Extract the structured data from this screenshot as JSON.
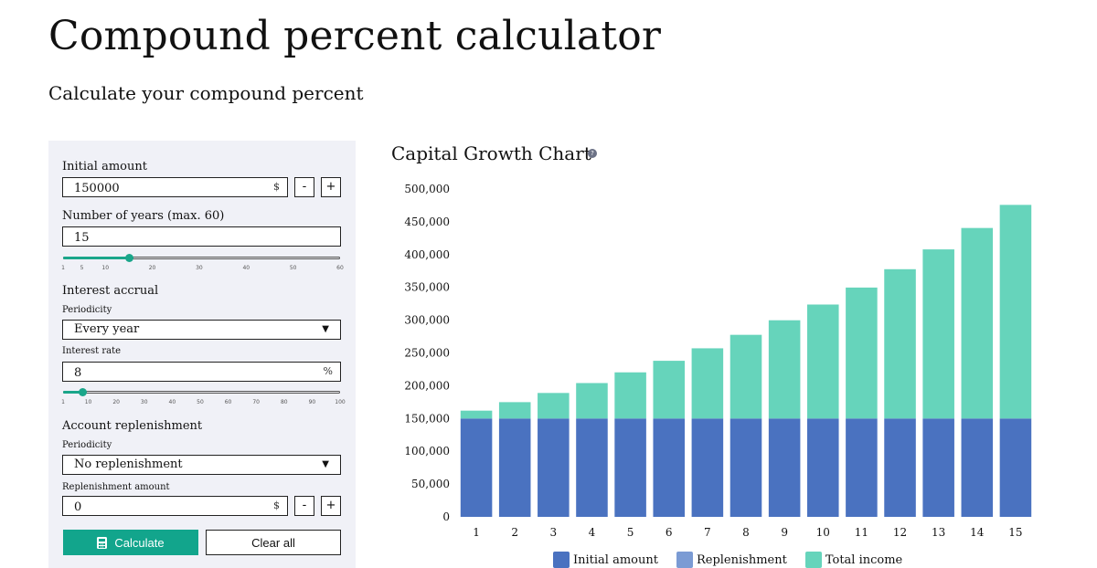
{
  "page": {
    "title": "Compound percent calculator",
    "subtitle": "Calculate your compound percent"
  },
  "form": {
    "initial_amount": {
      "label": "Initial amount",
      "value": "150000",
      "unit": "$",
      "minus": "-",
      "plus": "+"
    },
    "years": {
      "label": "Number of years (max. 60)",
      "value": "15",
      "slider": {
        "min": 1,
        "max": 60,
        "value": 15,
        "ticks": [
          "1",
          "5",
          "10",
          "20",
          "30",
          "40",
          "50",
          "60"
        ]
      }
    },
    "interest": {
      "heading": "Interest accrual",
      "periodicity_label": "Periodicity",
      "periodicity_value": "Every year",
      "rate_label": "Interest rate",
      "rate_value": "8",
      "rate_unit": "%",
      "slider": {
        "min": 1,
        "max": 100,
        "value": 8,
        "ticks": [
          "1",
          "10",
          "20",
          "30",
          "40",
          "50",
          "60",
          "70",
          "80",
          "90",
          "100"
        ]
      }
    },
    "replenishment": {
      "heading": "Account replenishment",
      "periodicity_label": "Periodicity",
      "periodicity_value": "No replenishment",
      "amount_label": "Replenishment amount",
      "amount_value": "0",
      "amount_unit": "$",
      "minus": "-",
      "plus": "+"
    },
    "calculate_label": "Calculate",
    "clear_label": "Clear all"
  },
  "chart_section": {
    "title": "Capital Growth Chart",
    "help_glyph": "?"
  },
  "chart_data": {
    "type": "bar",
    "stacked": true,
    "categories": [
      "1",
      "2",
      "3",
      "4",
      "5",
      "6",
      "7",
      "8",
      "9",
      "10",
      "11",
      "12",
      "13",
      "14",
      "15"
    ],
    "series": [
      {
        "name": "Initial amount",
        "color": "#4a72c0",
        "values": [
          150000,
          150000,
          150000,
          150000,
          150000,
          150000,
          150000,
          150000,
          150000,
          150000,
          150000,
          150000,
          150000,
          150000,
          150000
        ]
      },
      {
        "name": "Replenishment",
        "color": "#7b9bd4",
        "values": [
          0,
          0,
          0,
          0,
          0,
          0,
          0,
          0,
          0,
          0,
          0,
          0,
          0,
          0,
          0
        ]
      },
      {
        "name": "Total income",
        "color": "#66d4bb",
        "values": [
          12000,
          24960,
          38957,
          54073,
          70399,
          88031,
          107076,
          127640,
          149850,
          173838,
          199745,
          227725,
          257943,
          290579,
          325826
        ]
      }
    ],
    "ylim": [
      0,
      500000
    ],
    "yticks": [
      "0",
      "50,000",
      "100,000",
      "150,000",
      "200,000",
      "250,000",
      "300,000",
      "350,000",
      "400,000",
      "450,000",
      "500,000"
    ],
    "ytick_values": [
      0,
      50000,
      100000,
      150000,
      200000,
      250000,
      300000,
      350000,
      400000,
      450000,
      500000
    ],
    "legend_position": "bottom",
    "grid": false
  }
}
